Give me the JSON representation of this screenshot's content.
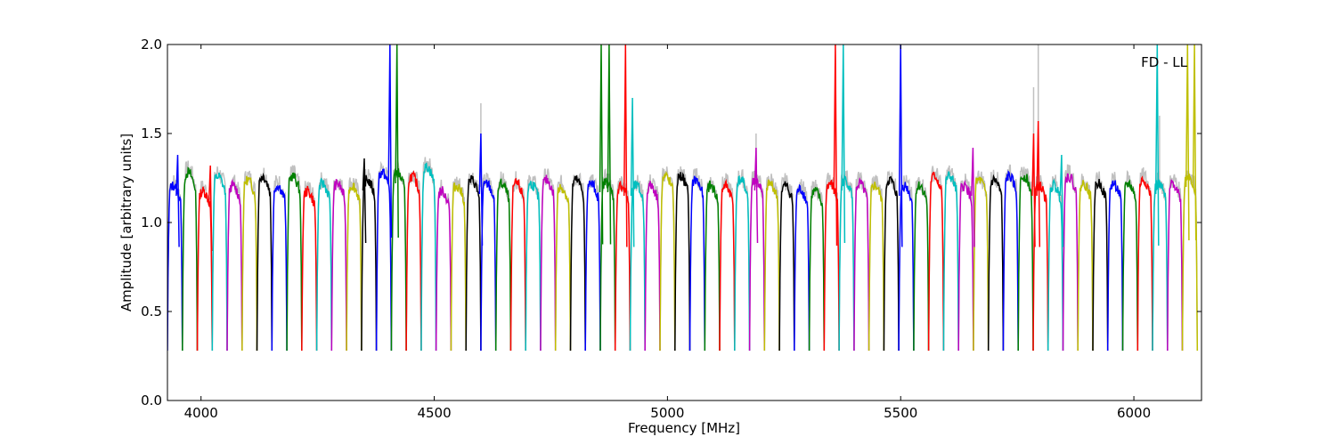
{
  "chart_data": {
    "type": "line",
    "title": "",
    "annotation": "FD - LL",
    "xlabel": "Frequency [MHz]",
    "ylabel": "Amplitude [arbitrary units]",
    "xlim": [
      3928,
      6145
    ],
    "ylim": [
      0.0,
      2.0
    ],
    "x_ticks": [
      4000,
      4500,
      5000,
      5500,
      6000
    ],
    "y_ticks": [
      0.0,
      0.5,
      1.0,
      1.5,
      2.0
    ],
    "y_tick_labels": [
      "0.0",
      "0.5",
      "1.0",
      "1.5",
      "2.0"
    ],
    "grid": false,
    "legend": "none",
    "channel_width_mhz": 32,
    "channel_start_mhz": 3928,
    "band_edge_level": 0.28,
    "background_series_color": "#c0c0c0",
    "color_cycle": [
      "#0000ff",
      "#008000",
      "#ff0000",
      "#00bfbf",
      "#bf00bf",
      "#bfbf00",
      "#000000"
    ],
    "channel_levels": [
      1.15,
      1.22,
      1.12,
      1.2,
      1.15,
      1.18,
      1.2,
      1.15,
      1.2,
      1.12,
      1.16,
      1.16,
      1.15,
      1.18,
      1.22,
      1.22,
      1.2,
      1.25,
      1.12,
      1.15,
      1.18,
      1.16,
      1.16,
      1.16,
      1.16,
      1.18,
      1.14,
      1.18,
      1.16,
      1.17,
      1.15,
      1.15,
      1.15,
      1.2,
      1.2,
      1.18,
      1.15,
      1.15,
      1.18,
      1.18,
      1.16,
      1.15,
      1.13,
      1.12,
      1.16,
      1.18,
      1.16,
      1.15,
      1.18,
      1.15,
      1.15,
      1.2,
      1.2,
      1.15,
      1.18,
      1.18,
      1.2,
      1.2,
      1.15,
      1.15,
      1.2,
      1.16,
      1.16,
      1.16,
      1.16,
      1.18,
      1.16,
      1.16,
      1.2
    ],
    "spikes": [
      {
        "x": 3950,
        "y": 1.38
      },
      {
        "x": 4020,
        "y": 1.32
      },
      {
        "x": 4350,
        "y": 1.36
      },
      {
        "x": 4405,
        "y": 2.0
      },
      {
        "x": 4420,
        "y": 2.0
      },
      {
        "x": 4600,
        "y": 1.5
      },
      {
        "x": 4858,
        "y": 2.0
      },
      {
        "x": 4875,
        "y": 2.0
      },
      {
        "x": 4910,
        "y": 2.0
      },
      {
        "x": 4925,
        "y": 1.7
      },
      {
        "x": 5190,
        "y": 1.42
      },
      {
        "x": 5360,
        "y": 2.0
      },
      {
        "x": 5377,
        "y": 2.0
      },
      {
        "x": 5500,
        "y": 2.0
      },
      {
        "x": 5655,
        "y": 1.42
      },
      {
        "x": 5785,
        "y": 1.5
      },
      {
        "x": 5795,
        "y": 1.57
      },
      {
        "x": 5845,
        "y": 1.38
      },
      {
        "x": 6050,
        "y": 2.0
      },
      {
        "x": 6115,
        "y": 2.0
      },
      {
        "x": 6130,
        "y": 2.0
      }
    ],
    "background_spikes": [
      {
        "x": 4600,
        "y": 1.67
      },
      {
        "x": 5190,
        "y": 1.5
      },
      {
        "x": 5785,
        "y": 1.76
      },
      {
        "x": 5795,
        "y": 2.0
      },
      {
        "x": 6055,
        "y": 1.6
      }
    ]
  }
}
